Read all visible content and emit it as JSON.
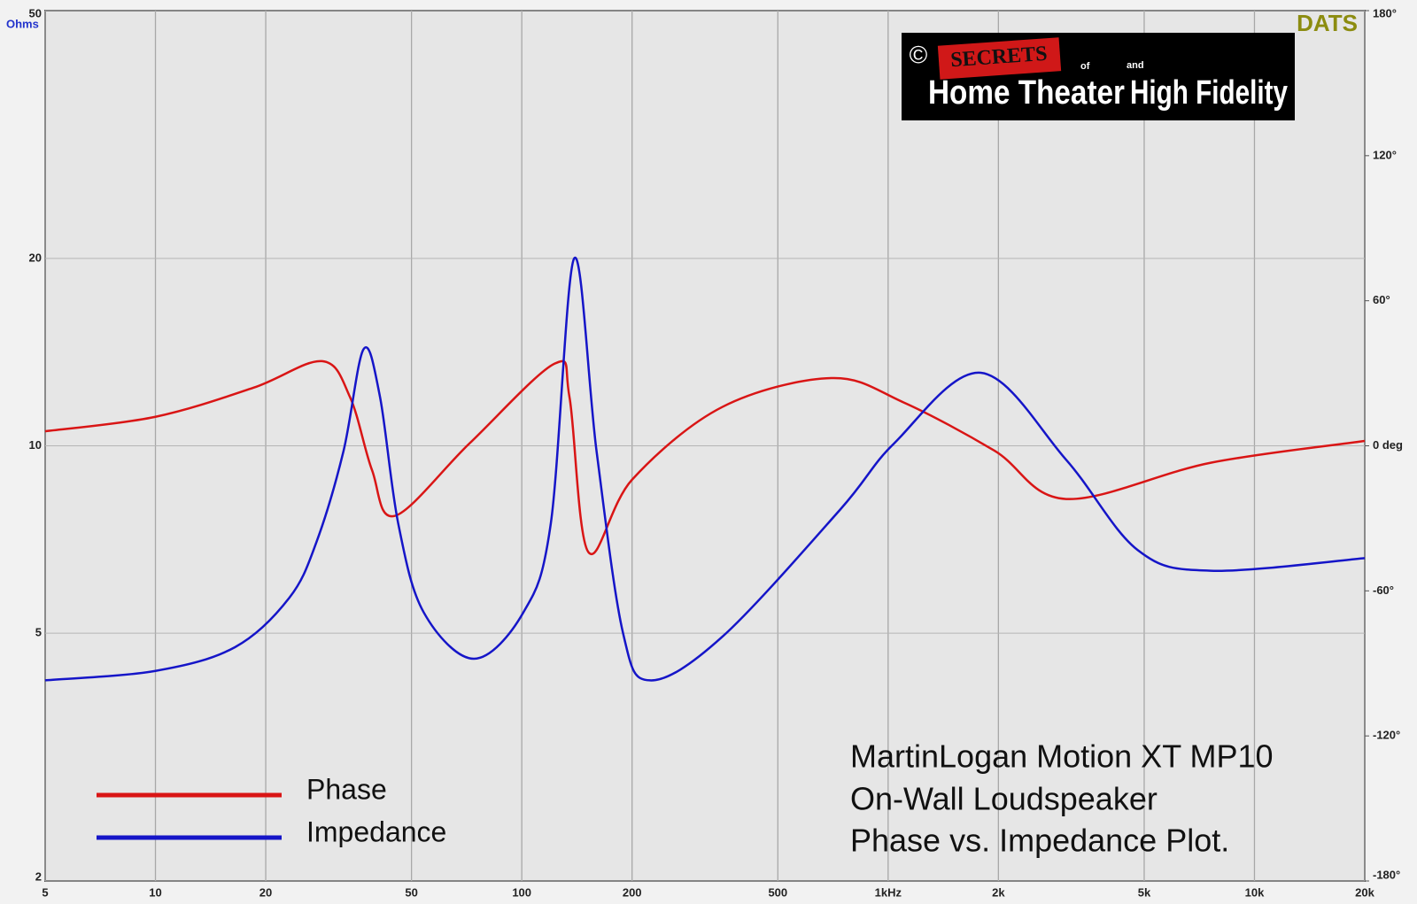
{
  "chart_data": {
    "type": "line",
    "y_unit": "Ohms",
    "brand": "DATS",
    "logo": {
      "copyright": "©",
      "badge": "SECRETS",
      "of": "of",
      "and": "and",
      "left": "Home Theater",
      "right": "High Fidelity"
    },
    "annotation": [
      "MartinLogan Motion XT MP10",
      "On-Wall Loudspeaker",
      "Phase vs. Impedance Plot."
    ],
    "xlog": true,
    "ylog": true,
    "grid": true,
    "xlim": [
      5,
      20000
    ],
    "xticks": [
      5,
      10,
      20,
      50,
      100,
      200,
      500,
      {
        "value": 1000,
        "label": "1kHz"
      },
      {
        "value": 2000,
        "label": "2k"
      },
      {
        "value": 5000,
        "label": "5k"
      },
      {
        "value": 10000,
        "label": "10k"
      },
      {
        "value": 20000,
        "label": "20k"
      }
    ],
    "ylim": [
      2,
      50
    ],
    "yticks": [
      2,
      5,
      10,
      20,
      50
    ],
    "y2lim": [
      -180,
      180
    ],
    "y2ticks": [
      {
        "value": 180,
        "label": "180°"
      },
      {
        "value": 120,
        "label": "120°"
      },
      {
        "value": 60,
        "label": "60°"
      },
      {
        "value": 0,
        "label": "0 deg"
      },
      {
        "value": -60,
        "label": "-60°"
      },
      {
        "value": -120,
        "label": "-120°"
      },
      {
        "value": -180,
        "label": "-180°"
      }
    ],
    "series": [
      {
        "name": "Phase",
        "color": "#d91515",
        "axis": "y2",
        "x": [
          5,
          10,
          18.5,
          28.5,
          34,
          39,
          45,
          72,
          123,
          135,
          152,
          200,
          352,
          700,
          1100,
          1950,
          3060,
          7600,
          20000
        ],
        "values": [
          6,
          12,
          24,
          35,
          20,
          -10,
          -29,
          1,
          34,
          20,
          -44,
          -14,
          16,
          28,
          18,
          -2,
          -22,
          -7,
          2
        ]
      },
      {
        "name": "Impedance",
        "color": "#1515c8",
        "axis": "y",
        "x": [
          5,
          10,
          16.5,
          23.2,
          27.5,
          32.6,
          37,
          41,
          46,
          54,
          74,
          101,
          120,
          139,
          160,
          189,
          224,
          352,
          740,
          1040,
          1790,
          3060,
          4800,
          7600,
          20000
        ],
        "values": [
          4.2,
          4.35,
          4.75,
          5.7,
          7.0,
          9.8,
          14.3,
          12,
          7.5,
          5.4,
          4.55,
          5.4,
          7.5,
          20,
          9.8,
          5.0,
          4.2,
          4.93,
          7.9,
          10.1,
          13.1,
          9.5,
          6.8,
          6.3,
          6.6
        ]
      }
    ]
  }
}
